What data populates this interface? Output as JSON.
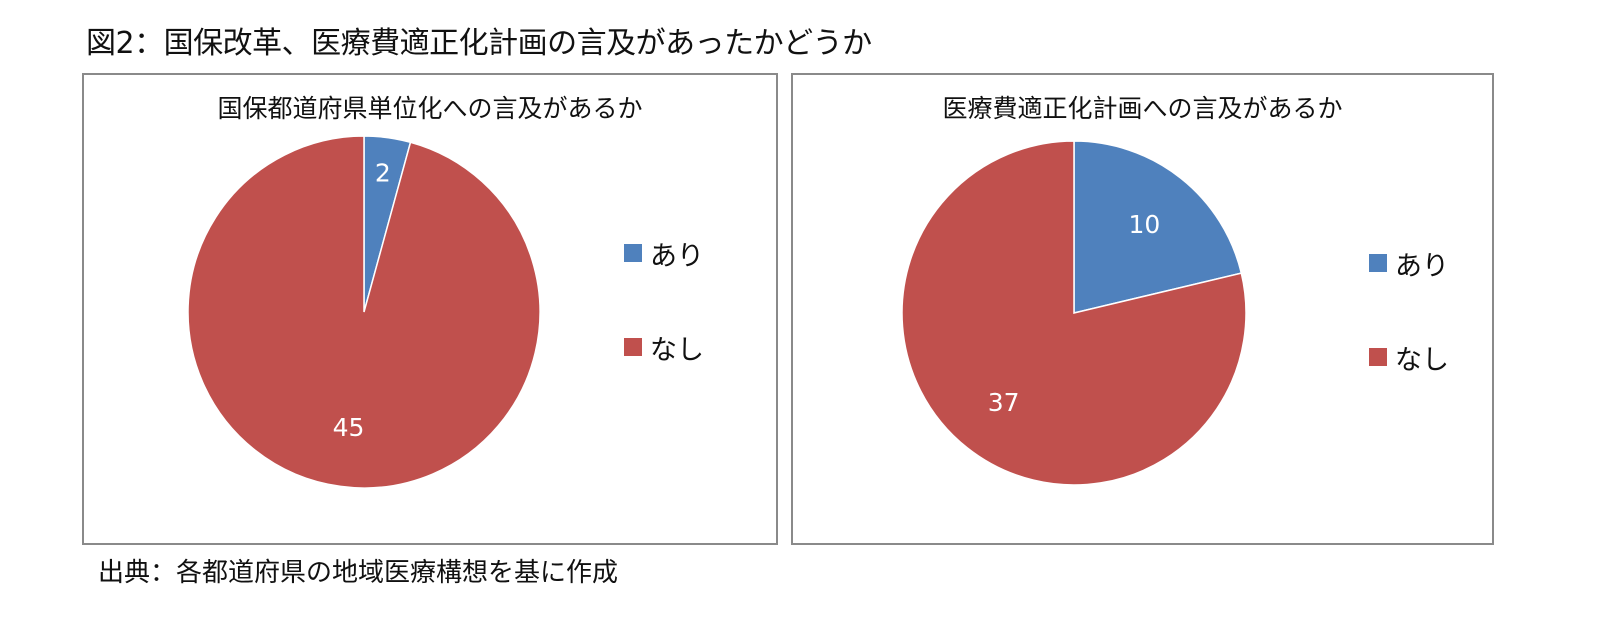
{
  "title": "図2：国保改革、医療費適正化計画の言及があったかどうか",
  "source": "出典：各都道府県の地域医療構想を基に作成",
  "chart_data": [
    {
      "type": "pie",
      "title": "国保都道府県単位化への言及があるか",
      "categories": [
        "あり",
        "なし"
      ],
      "values": [
        2,
        45
      ],
      "colors": [
        "#4F81BD",
        "#C0504D"
      ],
      "legend": "right"
    },
    {
      "type": "pie",
      "title": "医療費適正化計画への言及があるか",
      "categories": [
        "あり",
        "なし"
      ],
      "values": [
        10,
        37
      ],
      "colors": [
        "#4F81BD",
        "#C0504D"
      ],
      "legend": "right"
    }
  ]
}
